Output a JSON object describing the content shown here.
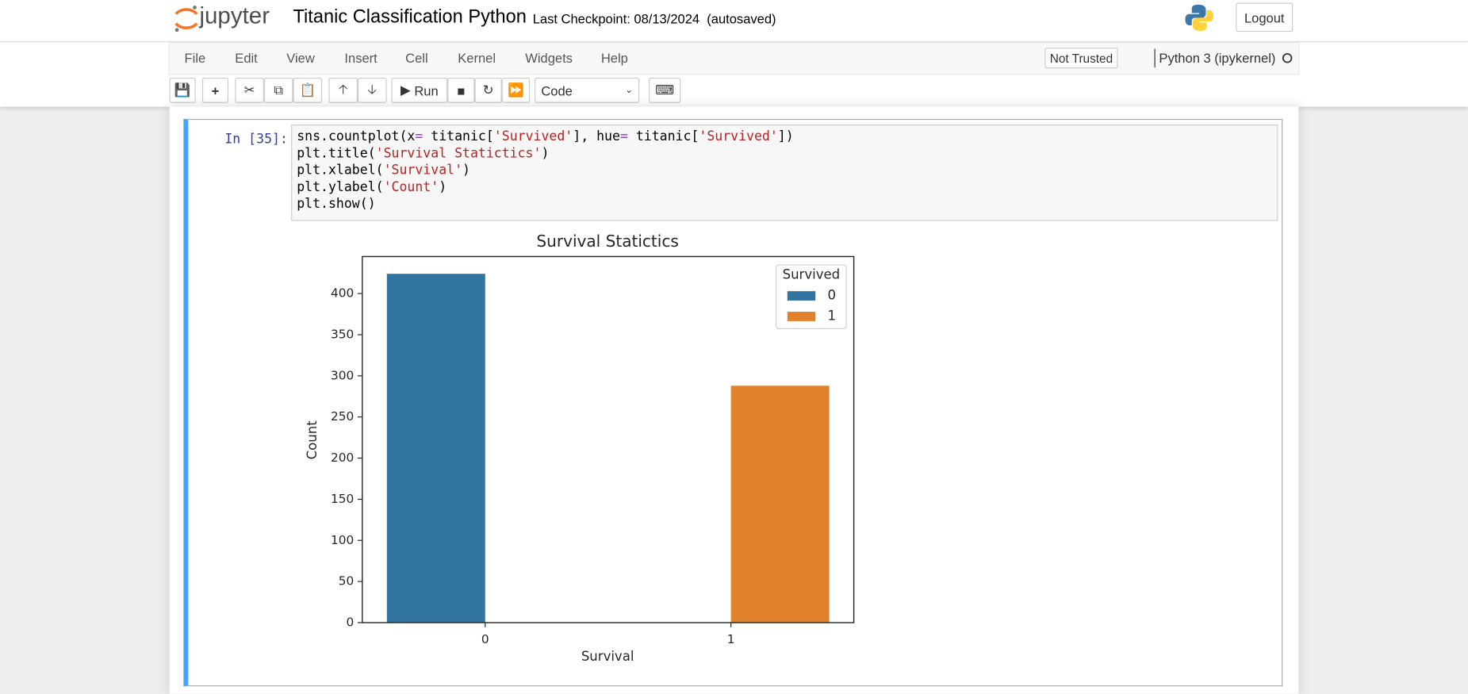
{
  "header": {
    "logo": "jupyter",
    "title": "Titanic Classification Python",
    "checkpoint": "Last Checkpoint: 08/13/2024",
    "autosaved": "(autosaved)",
    "logout": "Logout"
  },
  "menu": {
    "items": [
      "File",
      "Edit",
      "View",
      "Insert",
      "Cell",
      "Kernel",
      "Widgets",
      "Help"
    ],
    "trust": "Not Trusted",
    "kernel": "Python 3 (ipykernel)"
  },
  "toolbar": {
    "run": "Run",
    "cell_type": "Code"
  },
  "cell": {
    "prompt": "In [35]:",
    "code": [
      [
        "sns.countplot(x",
        "=",
        " titanic[",
        "'Survived'",
        "], hue",
        "=",
        " titanic[",
        "'Survived'",
        "])"
      ],
      [
        "plt.title(",
        "'Survival Statictics'",
        ")"
      ],
      [
        "plt.xlabel(",
        "'Survival'",
        ")"
      ],
      [
        "plt.ylabel(",
        "'Count'",
        ")"
      ],
      [
        "plt.show()"
      ]
    ]
  },
  "chart_data": {
    "type": "bar",
    "title": "Survival Statictics",
    "x_label": "Survival",
    "y_label": "Count",
    "categories": [
      "0",
      "1"
    ],
    "legend_title": "Survived",
    "legend": "upper right",
    "series": [
      {
        "name": "0",
        "color": "#3274a1",
        "values": [
          424,
          null
        ]
      },
      {
        "name": "1",
        "color": "#e1812c",
        "values": [
          null,
          288
        ]
      }
    ],
    "ylim": [
      0,
      445
    ],
    "yticks": [
      0,
      50,
      100,
      150,
      200,
      250,
      300,
      350,
      400
    ],
    "grid": false
  }
}
